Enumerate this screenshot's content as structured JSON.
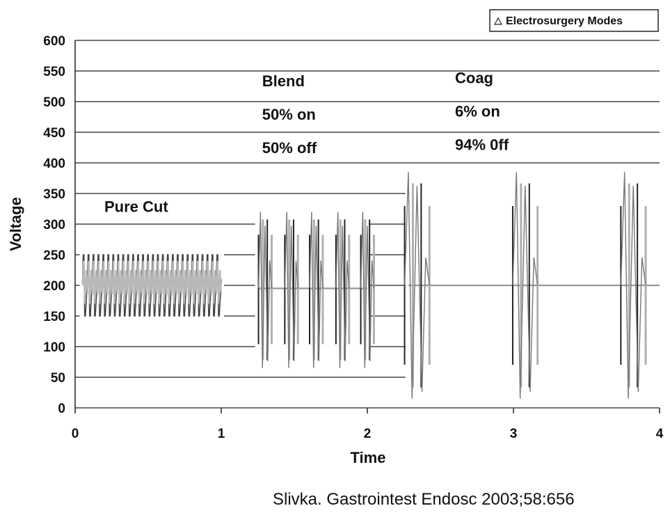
{
  "chart_data": {
    "type": "line",
    "title": "",
    "xlabel": "Time",
    "ylabel": "Voltage",
    "xlim": [
      0,
      4
    ],
    "ylim": [
      0,
      600
    ],
    "x_ticks": [
      "0",
      "1",
      "2",
      "3",
      "4"
    ],
    "y_ticks": [
      "0",
      "50",
      "100",
      "150",
      "200",
      "250",
      "300",
      "350",
      "400",
      "450",
      "500",
      "550",
      "600"
    ],
    "grid": "horizontal",
    "legend": {
      "position": "top-right",
      "entries": [
        "Electrosurgery Modes"
      ]
    },
    "annotations": [
      {
        "lines": [
          "Pure Cut"
        ],
        "x": 0.2,
        "y": 320
      },
      {
        "lines": [
          "Blend",
          "50% on",
          "50% off"
        ],
        "x": 1.28,
        "y": 525
      },
      {
        "lines": [
          "Coag",
          "6% on",
          "94% 0ff"
        ],
        "x": 2.6,
        "y": 530
      }
    ],
    "series": [
      {
        "mode": "Pure Cut",
        "segment": [
          0.05,
          1.0
        ],
        "baseline": 200,
        "peak": 250,
        "trough": 150,
        "cycles": 28
      },
      {
        "mode": "Blend",
        "segment": [
          1.25,
          2.0
        ],
        "baseline": 195,
        "peak": 320,
        "trough": 65,
        "bursts": [
          1.3,
          1.48,
          1.65,
          1.83,
          2.0
        ],
        "burst_width": 0.09
      },
      {
        "mode": "Coag",
        "segment": [
          2.28,
          4.0
        ],
        "baseline": 200,
        "peak": 385,
        "trough": 15,
        "bursts": [
          2.34,
          3.08,
          3.82
        ],
        "burst_width": 0.17
      }
    ]
  },
  "citation": "Slivka. Gastrointest Endosc 2003;58:656"
}
